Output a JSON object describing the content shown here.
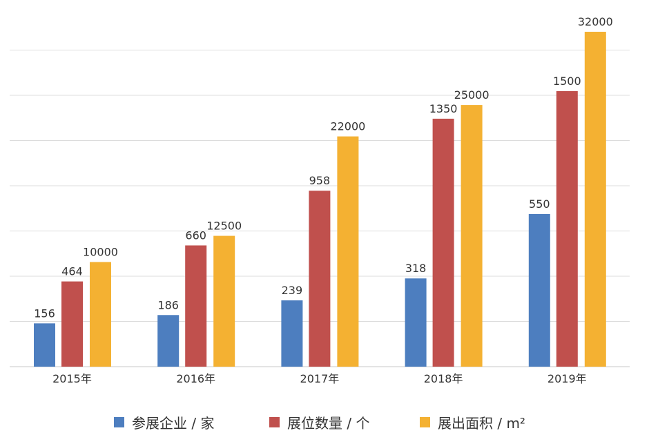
{
  "chart_data": {
    "type": "bar",
    "categories": [
      "2015年",
      "2016年",
      "2017年",
      "2018年",
      "2019年"
    ],
    "series": [
      {
        "name": "参展企业 / 家",
        "color": "#4d7ebf",
        "values": [
          156,
          186,
          239,
          318,
          550
        ]
      },
      {
        "name": "展位数量 / 个",
        "color": "#c0504d",
        "values": [
          464,
          660,
          958,
          1350,
          1500
        ]
      },
      {
        "name": "展出面积 / m²",
        "color": "#f4b132",
        "values": [
          10000,
          12500,
          22000,
          25000,
          32000
        ]
      }
    ],
    "title": "",
    "xlabel": "",
    "ylabel": "",
    "grid": true,
    "legend_position": "bottom"
  }
}
